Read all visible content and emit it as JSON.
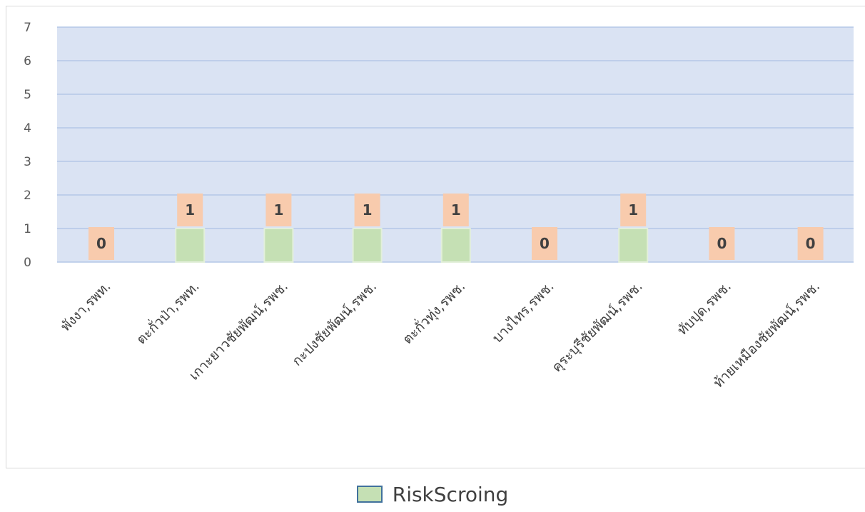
{
  "chart_data": {
    "type": "bar",
    "categories": [
      "พังงา,รพท.",
      "ตะกั่วป่า,รพท.",
      "เกาะยาวชัยพัฒน์,รพช.",
      "กะปงชัยพัฒน์,รพช.",
      "ตะกั่วทุ่ง,รพช.",
      "บางไทร,รพช.",
      "คุระบุรีชัยพัฒน์,รพช.",
      "ทับปุด,รพช.",
      "ท้ายเหมืองชัยพัฒน์,รพช."
    ],
    "series": [
      {
        "name": "RiskScroing",
        "values": [
          0,
          1,
          1,
          1,
          1,
          0,
          1,
          0,
          0
        ]
      }
    ],
    "ylim": [
      0,
      7
    ],
    "yticks": [
      0,
      1,
      2,
      3,
      4,
      5,
      6,
      7
    ],
    "grid": true,
    "legend_position": "bottom",
    "colors": {
      "plot_background": "#dae3f3",
      "gridline": "#b4c7e7",
      "bar_fill": "#c5e0b4",
      "bar_stroke": "#e2efda",
      "label_box": "#f8cbad",
      "legend_border": "#41719c"
    }
  }
}
